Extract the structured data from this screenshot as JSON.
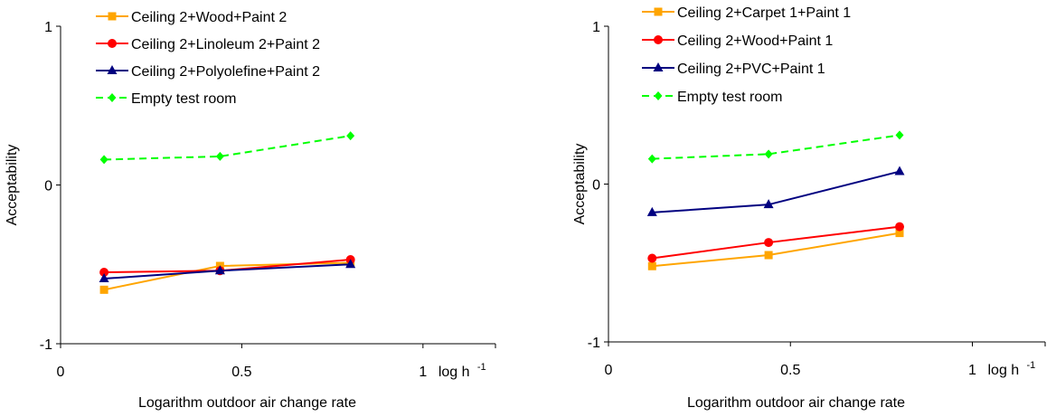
{
  "chart_data": [
    {
      "type": "line",
      "xlabel": "Logarithm outdoor air change rate",
      "ylabel": "Acceptability",
      "xunit": "log h",
      "xunit_sup": "-1",
      "xlim": [
        0,
        1.2
      ],
      "ylim": [
        -1,
        1
      ],
      "x_ticks": [
        0,
        0.5,
        1
      ],
      "x_tick_labels": [
        "0",
        "0.5",
        "1"
      ],
      "y_ticks": [
        -1,
        0,
        1
      ],
      "y_tick_labels": [
        "-1",
        "0",
        "1"
      ],
      "grid": false,
      "legend_position": "top-left",
      "series": [
        {
          "name": "Ceiling 2+Wood+Paint 2",
          "color": "#FFA500",
          "marker": "square",
          "dash": false,
          "x": [
            0.12,
            0.44,
            0.8
          ],
          "y": [
            -0.66,
            -0.51,
            -0.49
          ]
        },
        {
          "name": "Ceiling 2+Linoleum 2+Paint 2",
          "color": "#FF0000",
          "marker": "circle",
          "dash": false,
          "x": [
            0.12,
            0.44,
            0.8
          ],
          "y": [
            -0.55,
            -0.54,
            -0.47
          ]
        },
        {
          "name": "Ceiling 2+Polyolefine+Paint 2",
          "color": "#000080",
          "marker": "triangle",
          "dash": false,
          "x": [
            0.12,
            0.44,
            0.8
          ],
          "y": [
            -0.59,
            -0.54,
            -0.5
          ]
        },
        {
          "name": "Empty test room",
          "color": "#00FF00",
          "marker": "diamond",
          "dash": true,
          "x": [
            0.12,
            0.44,
            0.8
          ],
          "y": [
            0.16,
            0.18,
            0.31
          ]
        }
      ]
    },
    {
      "type": "line",
      "xlabel": "Logarithm outdoor air change rate",
      "ylabel": "Acceptability",
      "xunit": "log h",
      "xunit_sup": "-1",
      "xlim": [
        0,
        1.2
      ],
      "ylim": [
        -1,
        1
      ],
      "x_ticks": [
        0,
        0.5,
        1
      ],
      "x_tick_labels": [
        "0",
        "0.5",
        "1"
      ],
      "y_ticks": [
        -1,
        0,
        1
      ],
      "y_tick_labels": [
        "-1",
        "0",
        "1"
      ],
      "grid": false,
      "legend_position": "top-left",
      "series": [
        {
          "name": "Ceiling 2+Carpet 1+Paint 1",
          "color": "#FFA500",
          "marker": "square",
          "dash": false,
          "x": [
            0.12,
            0.44,
            0.8
          ],
          "y": [
            -0.52,
            -0.45,
            -0.31
          ]
        },
        {
          "name": "Ceiling 2+Wood+Paint 1",
          "color": "#FF0000",
          "marker": "circle",
          "dash": false,
          "x": [
            0.12,
            0.44,
            0.8
          ],
          "y": [
            -0.47,
            -0.37,
            -0.27
          ]
        },
        {
          "name": "Ceiling 2+PVC+Paint 1",
          "color": "#000080",
          "marker": "triangle",
          "dash": false,
          "x": [
            0.12,
            0.44,
            0.8
          ],
          "y": [
            -0.18,
            -0.13,
            0.08
          ]
        },
        {
          "name": "Empty test room",
          "color": "#00FF00",
          "marker": "diamond",
          "dash": true,
          "x": [
            0.12,
            0.44,
            0.8
          ],
          "y": [
            0.16,
            0.19,
            0.31
          ]
        }
      ]
    }
  ]
}
